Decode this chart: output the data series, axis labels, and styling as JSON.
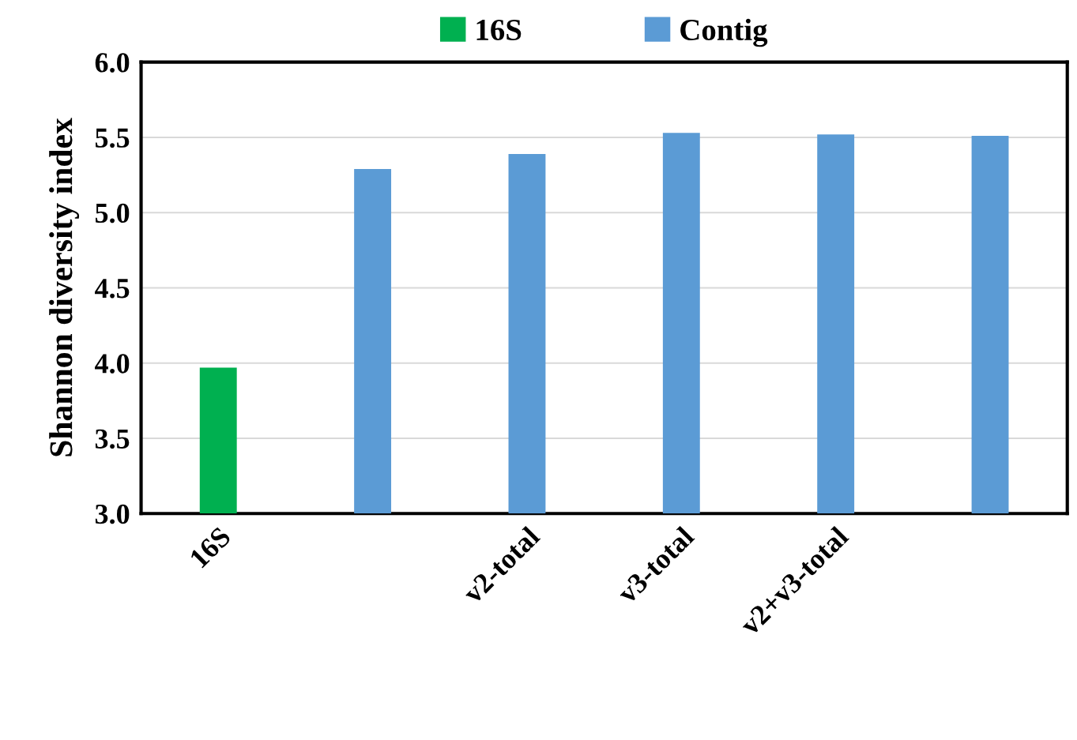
{
  "chart_data": {
    "type": "bar",
    "ylabel": "Shannon diversity index",
    "categories": [
      "16S",
      null,
      "v2-total",
      "v3-total",
      "v2+v3-total",
      null
    ],
    "series": [
      {
        "name": "16S",
        "color": "#00b050",
        "values": [
          3.97,
          null,
          null,
          null,
          null,
          null
        ]
      },
      {
        "name": "Contig",
        "color": "#5b9bd5",
        "values": [
          null,
          5.29,
          5.39,
          5.53,
          5.52,
          5.51
        ]
      }
    ],
    "ylim": [
      3.0,
      6.0
    ],
    "yticks": [
      {
        "value": 3.0,
        "label": "3.0"
      },
      {
        "value": 3.5,
        "label": "3.5"
      },
      {
        "value": 4.0,
        "label": "4.0"
      },
      {
        "value": 4.5,
        "label": "4.5"
      },
      {
        "value": 5.0,
        "label": "5.0"
      },
      {
        "value": 5.5,
        "label": "5.5"
      },
      {
        "value": 6.0,
        "label": "6.0"
      }
    ],
    "grid": "y",
    "legend": "top"
  }
}
